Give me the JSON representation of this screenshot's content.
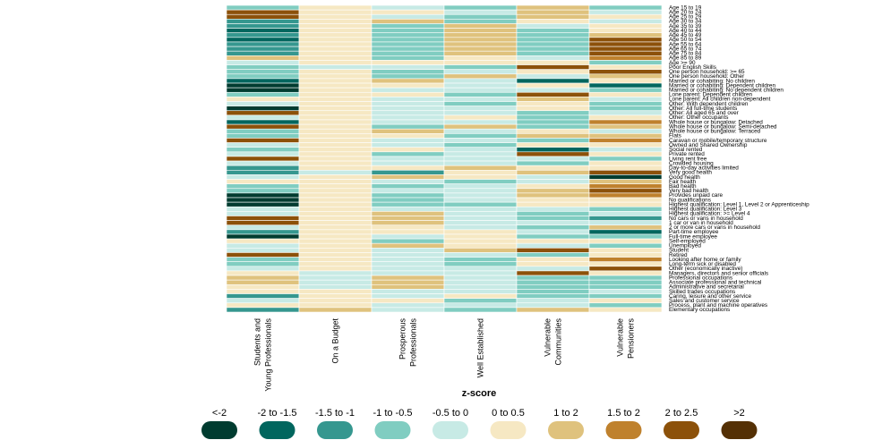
{
  "chart_data": {
    "type": "heatmap",
    "title": "",
    "xlabel": "",
    "ylabel": "",
    "columns": [
      [
        "Students and",
        "Young Professionals"
      ],
      [
        "On a Budget"
      ],
      [
        "Prosperous",
        "Professionals"
      ],
      [
        "Well Established"
      ],
      [
        "Vulnerable",
        "Communities"
      ],
      [
        "Vulnerable",
        "Pensioners"
      ]
    ],
    "rows": [
      "Age 15 to 19",
      "Age 20 to 24",
      "Age 25 to 29",
      "Age 30 to 34",
      "Age 35 to 39",
      "Age 40 to 44",
      "Age 45 to 49",
      "Age 50 to 54",
      "Age 55 to 64",
      "Age 65 to 74",
      "Age 75 to 84",
      "Age 85 to 89",
      "Age >= 90",
      "Poor English Skills",
      "One person household: >= 65",
      "One person household: Other",
      "Married or cohabiting: No children",
      "Married or cohabiting: Dependent children",
      "Married or cohabiting: No dependent children",
      "Lone parent: Dependent children",
      "Lone parent: All children non-dependent",
      "Other: With dependent children",
      "Other: All full-time students",
      "Other: All aged 65 and over",
      "Other: Other occupants",
      "Whole house or bungalow: Detached",
      "Whole house or bungalow: Semi-detached",
      "Whole house or bungalow: Terraced",
      "Flats",
      "Caravan or mobile/temporary structure",
      "Owned and Shared Ownership",
      "Social rented",
      "Private rented",
      "Living rent free",
      "Crowded housing",
      "Day-to-day activities limited",
      "Very good health",
      "Good health",
      "Fair health",
      "Bad health",
      "Very bad health",
      "Provides unpaid care",
      "No qualifications",
      "Highest qualification: Level 1, Level 2 or Apprenticeship",
      "Highest qualification: Level 3",
      "Highest qualification: >= Level 4",
      "No cars or vans in household",
      "1 car or van in household",
      "2 or more cars or vans in household",
      "Part-time employee",
      "Full-time employee",
      "Self-employed",
      "Unemployed",
      "Student",
      "Retired",
      "Looking after home or family",
      "Long-term sick or disabled",
      "Other (economically inactive)",
      "Managers, directors and senior officials",
      "Professional occupations",
      "Associate professional and technical",
      "Administrative and secretarial",
      "Skilled trades occupations",
      "Caring, leisure and other service",
      "Sales and customer service",
      "Process, plant and machine operatives",
      "Elementary occupations"
    ],
    "values": [
      [
        -0.75,
        0.25,
        -0.25,
        -0.75,
        0.75,
        -0.75
      ],
      [
        1.75,
        0.25,
        0.25,
        -0.25,
        0.75,
        -0.25
      ],
      [
        1.75,
        0.25,
        -0.25,
        -0.75,
        0.75,
        0.25
      ],
      [
        -1.25,
        0.25,
        0.75,
        -0.75,
        0.25,
        -0.25
      ],
      [
        -1.25,
        0.25,
        -0.75,
        0.75,
        -0.25,
        0.25
      ],
      [
        -1.75,
        0.25,
        -0.75,
        0.75,
        -0.75,
        0.25
      ],
      [
        -1.25,
        0.25,
        -0.75,
        0.75,
        -0.75,
        0.75
      ],
      [
        -1.75,
        0.25,
        -0.75,
        0.75,
        -0.75,
        1.75
      ],
      [
        -1.25,
        0.25,
        -0.75,
        0.75,
        -0.75,
        1.75
      ],
      [
        -1.25,
        0.25,
        -0.75,
        0.75,
        -0.75,
        1.75
      ],
      [
        -1.25,
        0.25,
        -0.75,
        0.75,
        -0.75,
        1.75
      ],
      [
        0.75,
        0.25,
        -0.75,
        0.25,
        -0.25,
        1.25
      ],
      [
        -0.25,
        0.25,
        0.25,
        0.25,
        0.25,
        -0.75
      ],
      [
        -0.75,
        -0.25,
        -0.25,
        -0.75,
        1.75,
        0.25
      ],
      [
        -0.75,
        0.25,
        -0.75,
        -0.25,
        0.25,
        1.75
      ],
      [
        -0.75,
        0.25,
        -0.75,
        0.75,
        -0.25,
        0.75
      ],
      [
        -1.75,
        0.25,
        0.75,
        -0.25,
        -1.75,
        0.25
      ],
      [
        -2.25,
        0.25,
        0.25,
        -0.25,
        0.25,
        -1.75
      ],
      [
        -2.25,
        0.25,
        -0.25,
        -0.25,
        -0.25,
        -0.75
      ],
      [
        -0.75,
        0.25,
        0.25,
        -0.75,
        1.75,
        0.25
      ],
      [
        0.25,
        0.25,
        -0.25,
        -0.25,
        0.75,
        -0.25
      ],
      [
        -0.25,
        0.25,
        -0.25,
        -0.75,
        0.25,
        -0.75
      ],
      [
        -2.25,
        0.25,
        -0.25,
        -0.25,
        0.25,
        -0.75
      ],
      [
        1.75,
        0.25,
        -0.25,
        -0.25,
        -0.75,
        -0.25
      ],
      [
        -0.25,
        0.25,
        -0.25,
        0.25,
        -0.75,
        0.25
      ],
      [
        -1.75,
        0.25,
        -0.25,
        -0.25,
        -0.75,
        1.25
      ],
      [
        1.75,
        0.25,
        -0.75,
        0.75,
        -0.75,
        0.75
      ],
      [
        -0.75,
        0.25,
        0.75,
        -0.25,
        0.25,
        -0.25
      ],
      [
        -0.75,
        0.25,
        0.25,
        -0.75,
        0.75,
        0.75
      ],
      [
        1.75,
        0.25,
        -0.25,
        -0.25,
        -0.75,
        1.25
      ],
      [
        -0.25,
        0.25,
        -0.25,
        -0.75,
        0.25,
        0.25
      ],
      [
        -0.75,
        0.25,
        0.25,
        -0.25,
        -1.75,
        -0.25
      ],
      [
        -0.25,
        0.25,
        -0.75,
        -0.25,
        1.75,
        0.25
      ],
      [
        1.75,
        0.25,
        -0.25,
        -0.25,
        -0.25,
        -0.75
      ],
      [
        -0.25,
        0.25,
        -0.25,
        -0.25,
        -0.75,
        0.25
      ],
      [
        -1.25,
        0.25,
        0.25,
        0.75,
        0.25,
        0.25
      ],
      [
        -1.25,
        -0.25,
        -1.25,
        0.25,
        0.75,
        1.75
      ],
      [
        -0.25,
        0.25,
        0.75,
        0.25,
        -0.25,
        -2.25
      ],
      [
        0.25,
        0.25,
        -0.25,
        -0.75,
        -0.25,
        0.75
      ],
      [
        -0.75,
        0.25,
        -0.75,
        -0.25,
        0.25,
        1.25
      ],
      [
        -0.75,
        0.25,
        -0.25,
        -0.25,
        0.75,
        1.75
      ],
      [
        -2.25,
        0.25,
        -0.75,
        -0.25,
        0.75,
        1.25
      ],
      [
        -2.25,
        0.25,
        -0.75,
        -0.25,
        0.25,
        0.25
      ],
      [
        -2.25,
        0.25,
        -0.75,
        -0.75,
        0.25,
        0.25
      ],
      [
        -0.25,
        0.25,
        -0.25,
        -0.25,
        -0.25,
        -0.75
      ],
      [
        -0.25,
        0.25,
        0.75,
        -0.25,
        -0.75,
        -0.25
      ],
      [
        1.75,
        0.25,
        0.75,
        -0.25,
        -0.75,
        -1.25
      ],
      [
        1.75,
        0.25,
        0.75,
        -0.25,
        -0.25,
        -0.25
      ],
      [
        -0.25,
        0.25,
        0.25,
        -0.25,
        -0.75,
        0.75
      ],
      [
        -1.25,
        0.25,
        0.25,
        0.25,
        -0.25,
        -1.75
      ],
      [
        -2.25,
        0.25,
        -0.25,
        0.25,
        -0.75,
        -0.75
      ],
      [
        0.25,
        0.25,
        -0.75,
        0.25,
        0.25,
        0.25
      ],
      [
        -0.25,
        0.25,
        0.75,
        0.25,
        -0.25,
        -0.75
      ],
      [
        -0.25,
        0.25,
        -0.25,
        0.75,
        1.75,
        0.25
      ],
      [
        1.75,
        0.25,
        -0.25,
        -0.25,
        -0.75,
        0.25
      ],
      [
        -0.75,
        0.25,
        -0.25,
        -0.75,
        0.25,
        1.25
      ],
      [
        -0.75,
        0.25,
        -0.25,
        -0.75,
        0.25,
        0.25
      ],
      [
        -0.25,
        0.25,
        -0.25,
        -0.25,
        -0.25,
        1.75
      ],
      [
        0.25,
        -0.25,
        -0.25,
        -0.25,
        1.75,
        0.25
      ],
      [
        0.75,
        -0.25,
        0.75,
        -0.25,
        -0.75,
        -0.75
      ],
      [
        0.75,
        -0.25,
        0.75,
        -0.25,
        -0.75,
        -0.75
      ],
      [
        0.25,
        -0.25,
        0.75,
        -0.25,
        -0.75,
        -0.75
      ],
      [
        0.25,
        0.25,
        -0.25,
        -0.25,
        -0.75,
        -0.25
      ],
      [
        -1.25,
        0.25,
        -0.25,
        0.25,
        -0.75,
        -0.75
      ],
      [
        -0.25,
        0.25,
        0.25,
        -0.75,
        -0.25,
        0.25
      ],
      [
        0.25,
        0.25,
        -0.25,
        -0.25,
        -0.25,
        -0.75
      ],
      [
        -1.25,
        0.75,
        -0.25,
        -0.75,
        0.75,
        0.25
      ]
    ],
    "legend": {
      "title": "z-score",
      "placement": "bottom",
      "bins": [
        {
          "label": "<-2",
          "color": "#003c30"
        },
        {
          "label": "-2 to -1.5",
          "color": "#01665e"
        },
        {
          "label": "-1.5 to -1",
          "color": "#35978f"
        },
        {
          "label": "-1 to -0.5",
          "color": "#80cdc1"
        },
        {
          "label": "-0.5 to 0",
          "color": "#c7eae5"
        },
        {
          "label": "0 to 0.5",
          "color": "#f6e8c3"
        },
        {
          "label": "1 to 2",
          "color": "#dfc27d"
        },
        {
          "label": "1.5 to 2",
          "color": "#bf812d"
        },
        {
          "label": "2 to 2.5",
          "color": "#8c510a"
        },
        {
          "label": ">2",
          "color": "#543005"
        }
      ]
    },
    "grid": false
  }
}
